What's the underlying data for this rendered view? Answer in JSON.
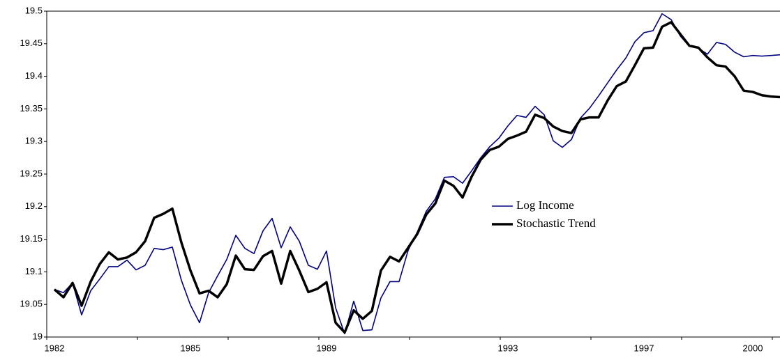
{
  "chart_data": {
    "type": "line",
    "categories": [
      "1982",
      null,
      null,
      null,
      null,
      null,
      null,
      null,
      null,
      null,
      null,
      null,
      null,
      null,
      null,
      "1985",
      null,
      null,
      null,
      null,
      null,
      null,
      null,
      null,
      null,
      null,
      null,
      null,
      null,
      null,
      "1989",
      null,
      null,
      null,
      null,
      null,
      null,
      null,
      null,
      null,
      null,
      null,
      null,
      null,
      null,
      null,
      null,
      null,
      null,
      null,
      "1993",
      null,
      null,
      null,
      null,
      null,
      null,
      null,
      null,
      null,
      null,
      null,
      null,
      null,
      null,
      "1997",
      null,
      null,
      null,
      null,
      null,
      null,
      null,
      null,
      null,
      null,
      null,
      "2000",
      null,
      null,
      null
    ],
    "series": [
      {
        "name": "Log Income",
        "color": "#000080",
        "width": 1.6,
        "values": [
          19.073,
          19.068,
          19.083,
          19.034,
          19.071,
          19.089,
          19.108,
          19.108,
          19.118,
          19.103,
          19.11,
          19.136,
          19.134,
          19.138,
          19.087,
          19.049,
          19.022,
          19.068,
          19.094,
          19.119,
          19.156,
          19.136,
          19.128,
          19.163,
          19.182,
          19.137,
          19.169,
          19.147,
          19.11,
          19.104,
          19.132,
          19.045,
          19.005,
          19.055,
          19.01,
          19.011,
          19.06,
          19.085,
          19.085,
          19.133,
          19.161,
          19.193,
          19.212,
          19.245,
          19.246,
          19.236,
          19.255,
          19.275,
          19.292,
          19.305,
          19.324,
          19.34,
          19.337,
          19.354,
          19.341,
          19.301,
          19.291,
          19.303,
          19.336,
          19.351,
          19.37,
          19.39,
          19.41,
          19.428,
          19.453,
          19.467,
          19.47,
          19.496,
          19.487,
          19.462,
          19.446,
          19.443,
          19.434,
          19.452,
          19.449,
          19.437,
          19.43,
          19.432,
          19.431,
          19.432,
          19.433
        ]
      },
      {
        "name": "Stochastic Trend",
        "color": "#000000",
        "width": 3.5,
        "values": [
          19.073,
          19.061,
          19.083,
          19.048,
          19.085,
          19.112,
          19.13,
          19.119,
          19.122,
          19.13,
          19.147,
          19.183,
          19.189,
          19.197,
          19.145,
          19.102,
          19.067,
          19.071,
          19.061,
          19.081,
          19.125,
          19.104,
          19.103,
          19.124,
          19.132,
          19.082,
          19.132,
          19.102,
          19.069,
          19.074,
          19.084,
          19.022,
          19.007,
          19.041,
          19.028,
          19.04,
          19.102,
          19.123,
          19.116,
          19.137,
          19.158,
          19.188,
          19.205,
          19.24,
          19.232,
          19.214,
          19.246,
          19.272,
          19.287,
          19.292,
          19.304,
          19.309,
          19.315,
          19.341,
          19.336,
          19.323,
          19.316,
          19.313,
          19.334,
          19.337,
          19.337,
          19.363,
          19.385,
          19.392,
          19.417,
          19.443,
          19.444,
          19.476,
          19.483,
          19.465,
          19.447,
          19.444,
          19.429,
          19.417,
          19.415,
          19.4,
          19.378,
          19.376,
          19.371,
          19.369,
          19.368
        ]
      }
    ],
    "ylim": [
      19,
      19.5
    ],
    "yticks": [
      19,
      19.05,
      19.1,
      19.15,
      19.2,
      19.25,
      19.3,
      19.35,
      19.4,
      19.45,
      19.5
    ],
    "grid": false,
    "legend": "center-right"
  }
}
